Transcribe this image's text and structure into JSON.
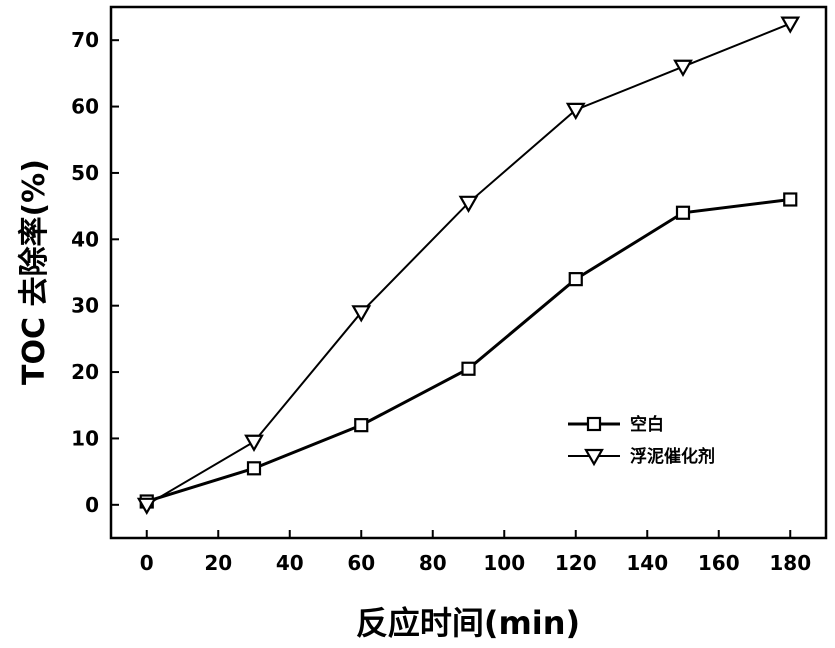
{
  "chart_data": {
    "type": "line",
    "xlabel": "反应时间(min)",
    "ylabel": "TOC 去除率(%)",
    "xlim": [
      -10,
      190
    ],
    "ylim": [
      -5,
      75
    ],
    "x_ticks": [
      0,
      20,
      40,
      60,
      80,
      100,
      120,
      140,
      160,
      180
    ],
    "y_ticks": [
      0,
      10,
      20,
      30,
      40,
      50,
      60,
      70
    ],
    "grid": false,
    "legend_position": "center-right",
    "x": [
      0,
      30,
      60,
      90,
      120,
      150,
      180
    ],
    "series": [
      {
        "name": "空白",
        "marker": "square",
        "values": [
          0.5,
          5.5,
          12,
          20.5,
          34,
          44,
          46
        ]
      },
      {
        "name": "浮泥催化剂",
        "marker": "triangle-down",
        "values": [
          0,
          9.5,
          29,
          45.5,
          59.5,
          66,
          72.5
        ]
      }
    ]
  }
}
